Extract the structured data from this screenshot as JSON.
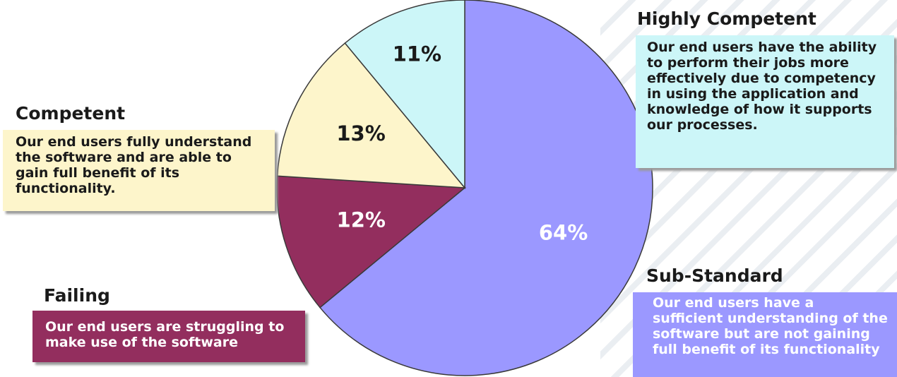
{
  "chart_data": {
    "type": "pie",
    "slices": [
      {
        "label": "Sub-Standard",
        "value": 64,
        "value_label": "64%",
        "color": "#9b98ff",
        "label_color": "#ffffff"
      },
      {
        "label": "Failing",
        "value": 12,
        "value_label": "12%",
        "color": "#932e5e",
        "label_color": "#ffffff"
      },
      {
        "label": "Competent",
        "value": 13,
        "value_label": "13%",
        "color": "#fdf5cb",
        "label_color": "#1a1a1a"
      },
      {
        "label": "Highly Competent",
        "value": 11,
        "value_label": "11%",
        "color": "#ccf6f8",
        "label_color": "#1a1a1a"
      }
    ]
  },
  "callouts": {
    "highly_competent": {
      "heading": "Highly Competent",
      "text": "Our end users have the ability to perform their jobs more effectively due to competency in using the application and knowledge of how it supports our processes."
    },
    "competent": {
      "heading": "Competent",
      "text": "Our end users fully understand the software and are able to gain full benefit of its functionality."
    },
    "failing": {
      "heading": "Failing",
      "text": "Our end users are struggling to make use of the software"
    },
    "sub_standard": {
      "heading": "Sub-Standard",
      "text": "Our end users have a sufficient understanding of the software but are not gaining full benefit of its functionality"
    }
  }
}
